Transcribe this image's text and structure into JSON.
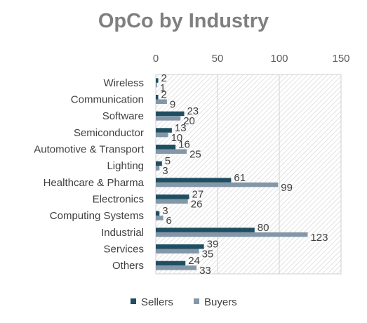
{
  "chart_data": {
    "type": "bar",
    "orientation": "horizontal",
    "title": "OpCo by Industry",
    "xlabel": "",
    "ylabel": "",
    "xlim": [
      0,
      150
    ],
    "x_ticks": [
      0,
      50,
      100,
      150
    ],
    "x_axis_position": "top",
    "grid": true,
    "legend_position": "bottom",
    "categories": [
      "Wireless",
      "Communication",
      "Software",
      "Semiconductor",
      "Automotive & Transport",
      "Lighting",
      "Healthcare & Pharma",
      "Electronics",
      "Computing Systems",
      "Industrial",
      "Services",
      "Others"
    ],
    "series": [
      {
        "name": "Sellers",
        "color": "#1f4e61",
        "values": [
          2,
          2,
          23,
          13,
          16,
          5,
          61,
          27,
          3,
          80,
          39,
          24
        ]
      },
      {
        "name": "Buyers",
        "color": "#8497a8",
        "values": [
          1,
          9,
          20,
          10,
          25,
          3,
          99,
          26,
          6,
          123,
          35,
          33
        ]
      }
    ]
  }
}
